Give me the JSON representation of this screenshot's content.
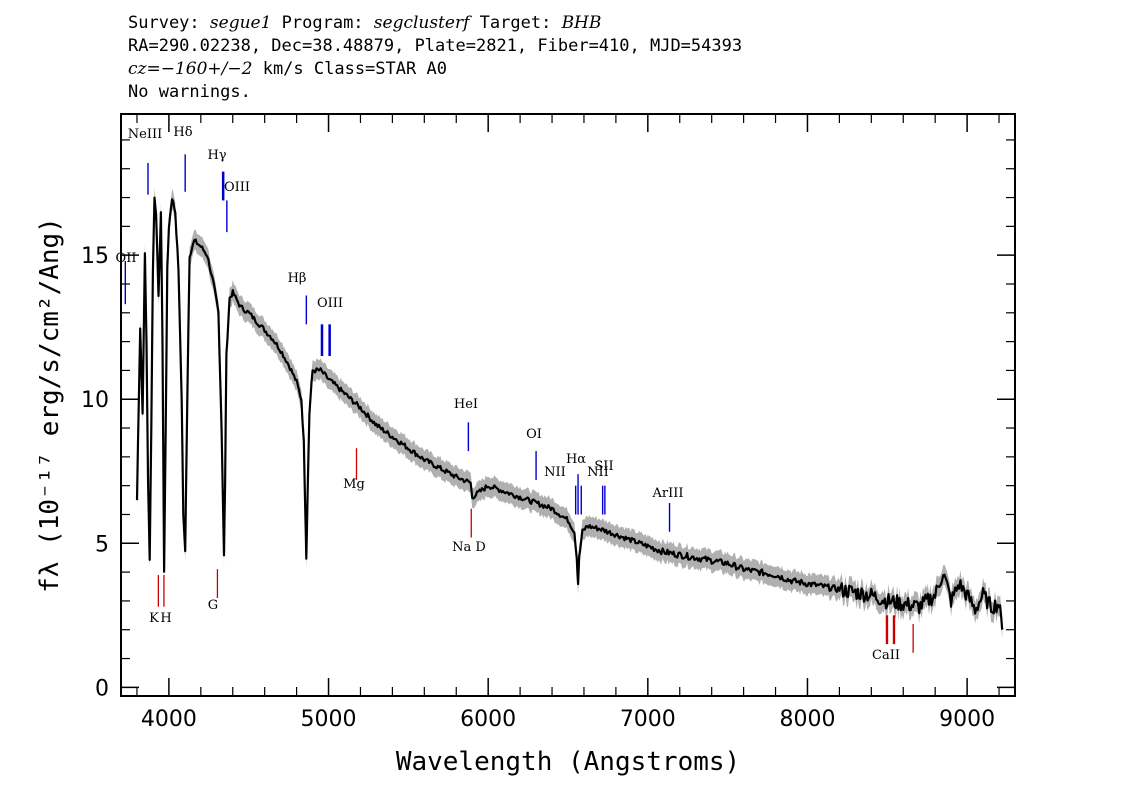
{
  "header": {
    "survey_label": "Survey:",
    "survey": "segue1",
    "program_label": "Program:",
    "program": "segclusterf",
    "target_label": "Target:",
    "target": "BHB",
    "line2": "RA=290.02238, Dec=38.48879, Plate=2821, Fiber=410, MJD=54393",
    "cz_label": "cz=",
    "cz_value": "−160+/−2",
    "cz_unit": " km/s Class=STAR A0",
    "warnings": "No warnings."
  },
  "chart_data": {
    "type": "line",
    "xlabel": "Wavelength (Angstroms)",
    "ylabel": "fλ (10⁻¹⁷ erg/s/cm²/Ang)",
    "xlim": [
      3700,
      9300
    ],
    "ylim": [
      -0.3,
      19.9
    ],
    "x_ticks": [
      4000,
      5000,
      6000,
      7000,
      8000,
      9000
    ],
    "y_ticks": [
      0,
      5,
      10,
      15
    ],
    "x_tick_labels": [
      "4000",
      "5000",
      "6000",
      "7000",
      "8000",
      "9000"
    ],
    "y_tick_labels": [
      "0",
      "5",
      "10",
      "15"
    ],
    "colors": {
      "spectrum": "#000000",
      "error_band": "#b0b0b0",
      "emission": "#0000cc",
      "absorption": "#cc0000"
    },
    "series": [
      {
        "x": [
          3800,
          3820,
          3835,
          3850,
          3860,
          3870,
          3880,
          3890,
          3900,
          3910,
          3920,
          3935,
          3950,
          3960,
          3970,
          3980,
          3990,
          4000,
          4020,
          4040,
          4060,
          4080,
          4090,
          4102,
          4115,
          4130,
          4160,
          4200,
          4240,
          4280,
          4310,
          4330,
          4340,
          4345,
          4352,
          4360,
          4380,
          4400,
          4450,
          4500,
          4550,
          4600,
          4650,
          4700,
          4750,
          4800,
          4830,
          4845,
          4855,
          4861,
          4868,
          4880,
          4900,
          4950,
          5000,
          5100,
          5200,
          5300,
          5400,
          5500,
          5600,
          5700,
          5800,
          5890,
          5900,
          6000,
          6100,
          6200,
          6300,
          6400,
          6450,
          6500,
          6540,
          6555,
          6563,
          6570,
          6590,
          6620,
          6700,
          6800,
          6900,
          7000,
          7100,
          7200,
          7300,
          7400,
          7500,
          7600,
          7700,
          7800,
          7900,
          8000,
          8100,
          8200,
          8300,
          8400,
          8500,
          8600,
          8700,
          8800,
          8850,
          8900,
          8950,
          9000,
          9050,
          9100,
          9150,
          9200,
          9220
        ],
        "y": [
          6.5,
          12.5,
          9.5,
          15.0,
          12.0,
          7.0,
          4.5,
          9.0,
          14.5,
          17.0,
          16.5,
          13.5,
          16.5,
          12.0,
          4.0,
          9.0,
          14.5,
          16.0,
          17.0,
          16.5,
          14.5,
          10.0,
          6.0,
          4.7,
          10.0,
          15.0,
          15.5,
          15.3,
          15.0,
          14.0,
          13.0,
          9.0,
          6.0,
          4.6,
          7.0,
          11.5,
          13.5,
          13.7,
          13.2,
          13.0,
          12.7,
          12.4,
          12.1,
          11.7,
          11.2,
          10.6,
          10.0,
          8.5,
          6.0,
          4.5,
          6.5,
          9.5,
          11.0,
          11.0,
          10.7,
          10.2,
          9.7,
          9.1,
          8.7,
          8.3,
          7.9,
          7.6,
          7.3,
          7.1,
          6.6,
          7.0,
          6.8,
          6.6,
          6.4,
          6.2,
          6.0,
          5.8,
          5.4,
          4.5,
          3.6,
          4.5,
          5.4,
          5.6,
          5.5,
          5.3,
          5.1,
          4.9,
          4.7,
          4.6,
          4.5,
          4.4,
          4.3,
          4.1,
          4.0,
          3.9,
          3.7,
          3.6,
          3.5,
          3.4,
          3.3,
          3.2,
          3.0,
          2.9,
          2.8,
          3.2,
          4.0,
          3.0,
          3.6,
          3.2,
          2.7,
          3.2,
          2.8,
          2.9,
          2.0
        ]
      }
    ],
    "emission_lines": [
      {
        "label": "OII",
        "x": 3727
      },
      {
        "label": "NeIII",
        "x": 3869
      },
      {
        "label": "Hδ",
        "x": 4102
      },
      {
        "label": "Hγ",
        "x": 4340
      },
      {
        "label": "OIII",
        "x": 4363
      },
      {
        "label": "Hβ",
        "x": 4861
      },
      {
        "label": "OIII",
        "x": 4959
      },
      {
        "label": "OIII",
        "x": 5007
      },
      {
        "label": "HeI",
        "x": 5876
      },
      {
        "label": "OI",
        "x": 6300
      },
      {
        "label": "NII",
        "x": 6548
      },
      {
        "label": "Hα",
        "x": 6563
      },
      {
        "label": "NII",
        "x": 6583
      },
      {
        "label": "SII",
        "x": 6717
      },
      {
        "label": "SII",
        "x": 6731
      },
      {
        "label": "ArIII",
        "x": 7136
      }
    ],
    "absorption_lines": [
      {
        "label": "K",
        "x": 3934
      },
      {
        "label": "H",
        "x": 3969
      },
      {
        "label": "G",
        "x": 4304
      },
      {
        "label": "Mg",
        "x": 5175
      },
      {
        "label": "Na D",
        "x": 5894
      },
      {
        "label": "CaII",
        "x": 8498
      },
      {
        "label": "CaII",
        "x": 8542
      },
      {
        "label": "CaII",
        "x": 8662
      }
    ]
  }
}
